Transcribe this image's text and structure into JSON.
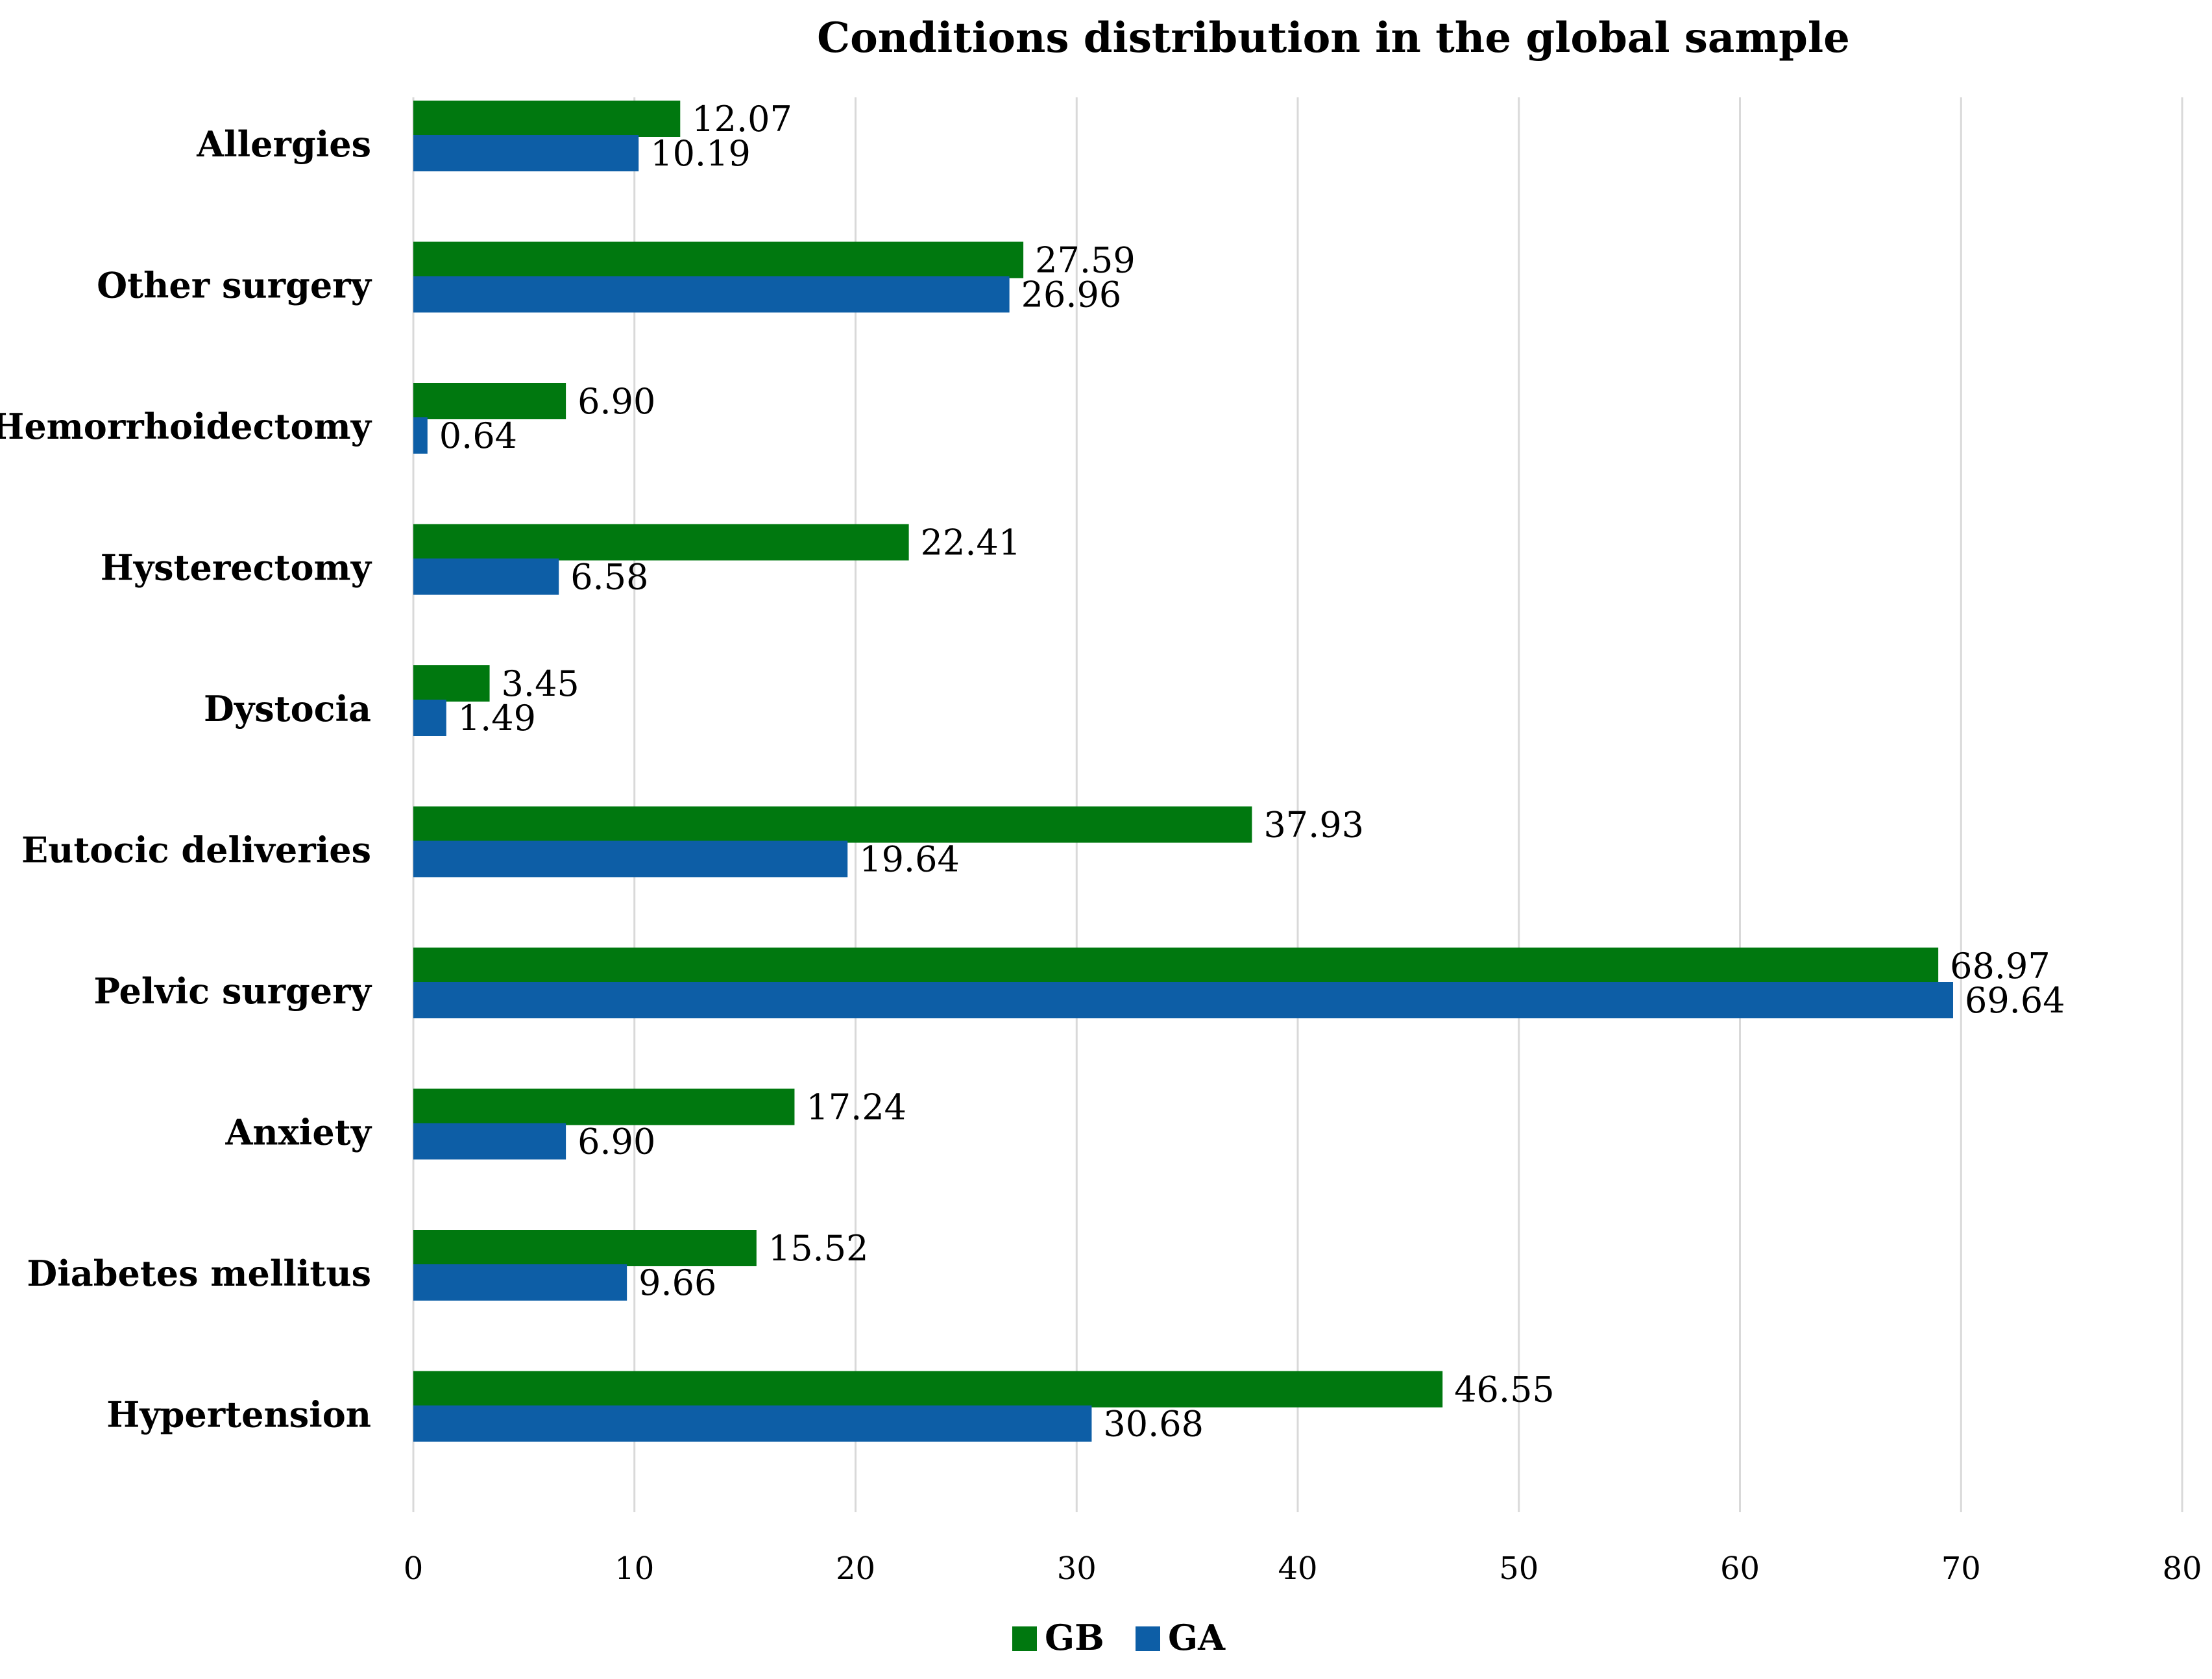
{
  "chart_data": {
    "type": "bar",
    "orientation": "horizontal",
    "title": "Conditions distribution in the global sample",
    "categories": [
      "Allergies",
      "Other surgery",
      "Hemorrhoidectomy",
      "Hysterectomy",
      "Dystocia",
      "Eutocic deliveries",
      "Pelvic surgery",
      "Anxiety",
      "Diabetes mellitus",
      "Hypertension"
    ],
    "series": [
      {
        "name": "GB",
        "color": "#00780f",
        "values": [
          12.07,
          27.59,
          6.9,
          22.41,
          3.45,
          37.93,
          68.97,
          17.24,
          15.52,
          46.55
        ],
        "labels": [
          "12.07",
          "27.59",
          "6.90",
          "22.41",
          "3.45",
          "37.93",
          "68.97",
          "17.24",
          "15.52",
          "46.55"
        ]
      },
      {
        "name": "GA",
        "color": "#0d5ea6",
        "values": [
          10.19,
          26.96,
          0.64,
          6.58,
          1.49,
          19.64,
          69.64,
          6.9,
          9.66,
          30.68
        ],
        "labels": [
          "10.19",
          "26.96",
          "0.64",
          "6.58",
          "1.49",
          "19.64",
          "69.64",
          "6.90",
          "9.66",
          "30.68"
        ]
      }
    ],
    "xlabel": "",
    "ylabel": "",
    "xlim": [
      0,
      80
    ],
    "ticks": [
      "0",
      "10",
      "20",
      "30",
      "40",
      "50",
      "60",
      "70",
      "80"
    ],
    "tick_values": [
      0,
      10,
      20,
      30,
      40,
      50,
      60,
      70,
      80
    ],
    "grid": true,
    "legend_position": "bottom-center"
  }
}
